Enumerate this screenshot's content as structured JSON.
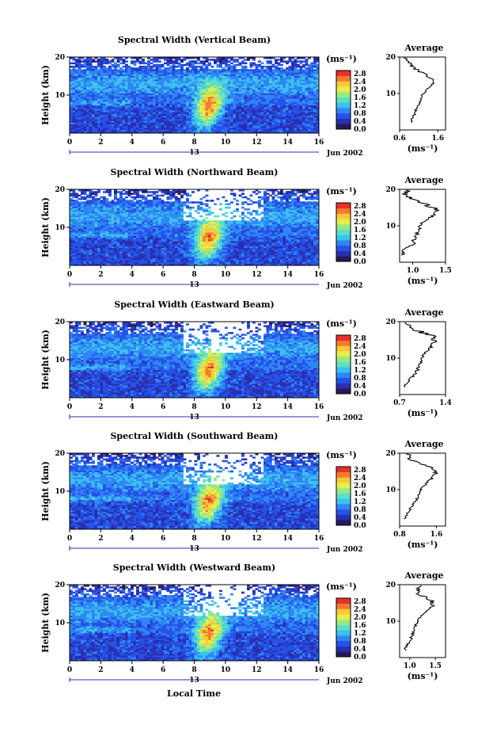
{
  "colors": {
    "colormap": [
      "#241a55",
      "#2a2fb0",
      "#2552e8",
      "#2f86f4",
      "#3cc0f0",
      "#5be0c8",
      "#9be882",
      "#e4ef4a",
      "#f8c83a",
      "#f47a2d",
      "#e8302a"
    ]
  },
  "shared": {
    "time_ticks": [
      "0",
      "2",
      "4",
      "6",
      "8",
      "10",
      "12",
      "14",
      "16"
    ],
    "date_mid": "13",
    "date_label": "Jun 2002",
    "height_ticks": [
      "20",
      "10"
    ],
    "ylabel": "Height (km)",
    "colorbar_unit": "(ms⁻¹)",
    "colorbar_ticks": [
      "2.8",
      "2.4",
      "2.0",
      "1.6",
      "1.2",
      "0.8",
      "0.4",
      "0.0"
    ],
    "profile_title": "Average",
    "profile_xlabel": "(ms⁻¹)",
    "xlabel": "Local Time"
  },
  "chart_data": [
    {
      "type": "heatmap",
      "title": "Spectral Width (Vertical Beam)",
      "x_range": [
        0,
        16
      ],
      "y_range": [
        0,
        20
      ],
      "color_range": [
        0.0,
        3.0
      ],
      "profile": {
        "type": "line",
        "xlim": [
          0.6,
          1.8
        ],
        "xticks": [
          "0.6",
          "1.6"
        ],
        "heights": [
          2,
          3,
          4,
          5,
          6,
          7,
          8,
          9,
          10,
          11,
          12,
          13,
          14,
          15,
          16,
          17,
          18,
          19,
          20
        ],
        "values": [
          0.92,
          0.92,
          0.98,
          1.0,
          1.05,
          1.1,
          1.13,
          1.17,
          1.22,
          1.3,
          1.42,
          1.5,
          1.45,
          1.32,
          1.12,
          0.98,
          0.88,
          0.8,
          0.72
        ]
      }
    },
    {
      "type": "heatmap",
      "title": "Spectral Width (Northward Beam)",
      "x_range": [
        0,
        16
      ],
      "y_range": [
        0,
        20
      ],
      "color_range": [
        0.0,
        3.0
      ],
      "profile": {
        "type": "line",
        "xlim": [
          0.8,
          1.5
        ],
        "xticks": [
          "1.0",
          "1.5"
        ],
        "heights": [
          2,
          3,
          4,
          5,
          6,
          7,
          8,
          9,
          10,
          11,
          12,
          13,
          14,
          15,
          16,
          17,
          18,
          19,
          20
        ],
        "values": [
          0.85,
          0.84,
          0.9,
          1.02,
          1.0,
          1.05,
          1.07,
          1.1,
          1.12,
          1.15,
          1.25,
          1.32,
          1.36,
          1.3,
          1.2,
          1.05,
          0.95,
          0.88,
          0.92
        ]
      }
    },
    {
      "type": "heatmap",
      "title": "Spectral Width (Eastward Beam)",
      "x_range": [
        0,
        16
      ],
      "y_range": [
        0,
        20
      ],
      "color_range": [
        0.0,
        3.0
      ],
      "profile": {
        "type": "line",
        "xlim": [
          0.7,
          1.4
        ],
        "xticks": [
          "0.7",
          "1.4"
        ],
        "heights": [
          2,
          3,
          4,
          5,
          6,
          7,
          8,
          9,
          10,
          11,
          12,
          13,
          14,
          15,
          16,
          17,
          18,
          19,
          20
        ],
        "values": [
          0.78,
          0.8,
          0.86,
          0.9,
          0.94,
          0.98,
          1.0,
          1.02,
          1.04,
          1.07,
          1.12,
          1.18,
          1.2,
          1.25,
          1.22,
          1.05,
          0.9,
          0.82,
          0.76
        ]
      }
    },
    {
      "type": "heatmap",
      "title": "Spectral Width (Southward Beam)",
      "x_range": [
        0,
        16
      ],
      "y_range": [
        0,
        20
      ],
      "color_range": [
        0.0,
        3.0
      ],
      "profile": {
        "type": "line",
        "xlim": [
          0.8,
          1.8
        ],
        "xticks": [
          "0.8",
          "1.6"
        ],
        "heights": [
          2,
          3,
          4,
          5,
          6,
          7,
          8,
          9,
          10,
          11,
          12,
          13,
          14,
          15,
          16,
          17,
          18,
          19,
          20
        ],
        "values": [
          0.92,
          0.95,
          1.0,
          1.05,
          1.1,
          1.15,
          1.2,
          1.22,
          1.26,
          1.32,
          1.4,
          1.5,
          1.55,
          1.62,
          1.48,
          1.3,
          1.1,
          0.98,
          1.02
        ]
      }
    },
    {
      "type": "heatmap",
      "title": "Spectral Width (Westward Beam)",
      "x_range": [
        0,
        16
      ],
      "y_range": [
        0,
        20
      ],
      "color_range": [
        0.0,
        3.0
      ],
      "profile": {
        "type": "line",
        "xlim": [
          0.8,
          1.7
        ],
        "xticks": [
          "1.0",
          "1.5"
        ],
        "heights": [
          2,
          3,
          4,
          5,
          6,
          7,
          8,
          9,
          10,
          11,
          12,
          13,
          14,
          15,
          16,
          17,
          18,
          19,
          20
        ],
        "values": [
          0.9,
          0.92,
          0.98,
          1.02,
          1.04,
          1.07,
          1.1,
          1.12,
          1.15,
          1.2,
          1.28,
          1.35,
          1.42,
          1.48,
          1.4,
          1.25,
          1.12,
          1.2,
          1.3
        ]
      }
    }
  ]
}
